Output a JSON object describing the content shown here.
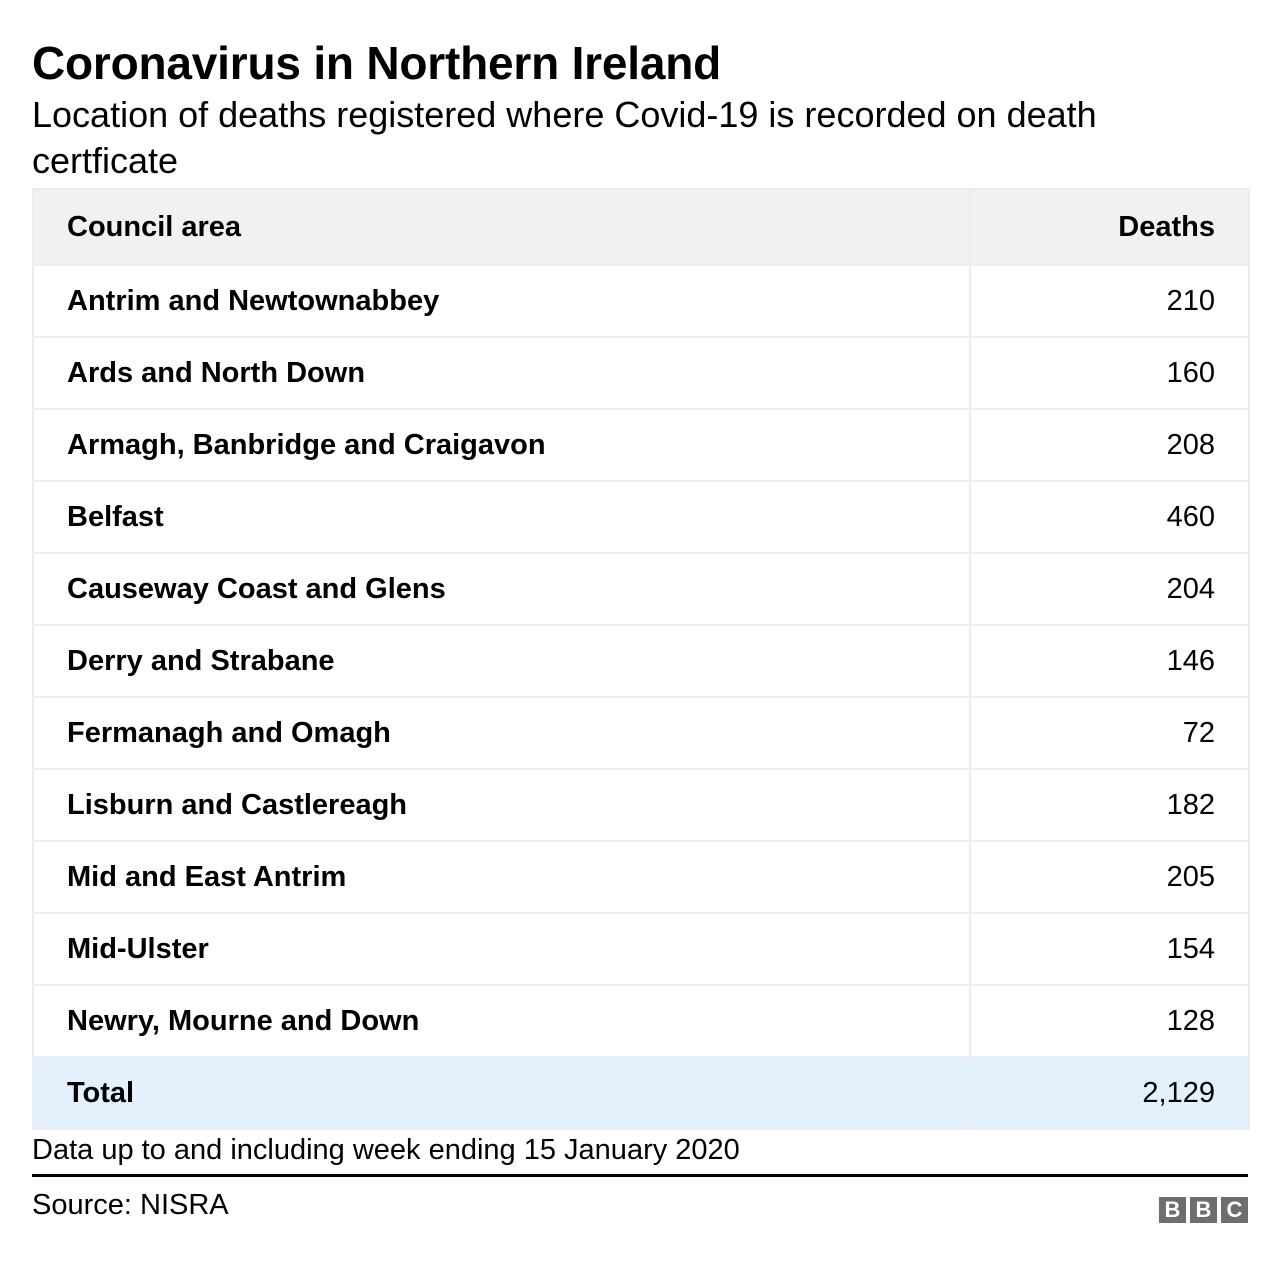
{
  "header": {
    "title": "Coronavirus in Northern Ireland",
    "subtitle": "Location of deaths registered where Covid-19 is recorded on death certficate"
  },
  "table": {
    "columns": [
      "Council area",
      "Deaths"
    ],
    "rows": [
      {
        "area": "Antrim and Newtownabbey",
        "deaths": "210"
      },
      {
        "area": "Ards and North Down",
        "deaths": "160"
      },
      {
        "area": "Armagh, Banbridge and Craigavon",
        "deaths": "208"
      },
      {
        "area": "Belfast",
        "deaths": "460"
      },
      {
        "area": "Causeway Coast and Glens",
        "deaths": "204"
      },
      {
        "area": "Derry and Strabane",
        "deaths": "146"
      },
      {
        "area": "Fermanagh and Omagh",
        "deaths": "72"
      },
      {
        "area": "Lisburn and Castlereagh",
        "deaths": "182"
      },
      {
        "area": "Mid and East Antrim",
        "deaths": "205"
      },
      {
        "area": "Mid-Ulster",
        "deaths": "154"
      },
      {
        "area": "Newry, Mourne and Down",
        "deaths": "128"
      }
    ],
    "total": {
      "label": "Total",
      "deaths": "2,129"
    }
  },
  "footer": {
    "note": "Data up to and including week ending 15 January 2020",
    "source": "Source: NISRA",
    "logo_letters": [
      "B",
      "B",
      "C"
    ]
  },
  "colors": {
    "header_bg": "#f1f1f1",
    "total_bg": "#e3f1fc",
    "border": "#ececec",
    "logo": "#6e6e6e"
  },
  "chart_data": {
    "type": "table",
    "title": "Coronavirus in Northern Ireland",
    "subtitle": "Location of deaths registered where Covid-19 is recorded on death certficate",
    "columns": [
      "Council area",
      "Deaths"
    ],
    "categories": [
      "Antrim and Newtownabbey",
      "Ards and North Down",
      "Armagh, Banbridge and Craigavon",
      "Belfast",
      "Causeway Coast and Glens",
      "Derry and Strabane",
      "Fermanagh and Omagh",
      "Lisburn and Castlereagh",
      "Mid and East Antrim",
      "Mid-Ulster",
      "Newry, Mourne and Down"
    ],
    "values": [
      210,
      160,
      208,
      460,
      204,
      146,
      72,
      182,
      205,
      154,
      128
    ],
    "total": 2129,
    "note": "Data up to and including week ending 15 January 2020",
    "source": "Source: NISRA"
  }
}
